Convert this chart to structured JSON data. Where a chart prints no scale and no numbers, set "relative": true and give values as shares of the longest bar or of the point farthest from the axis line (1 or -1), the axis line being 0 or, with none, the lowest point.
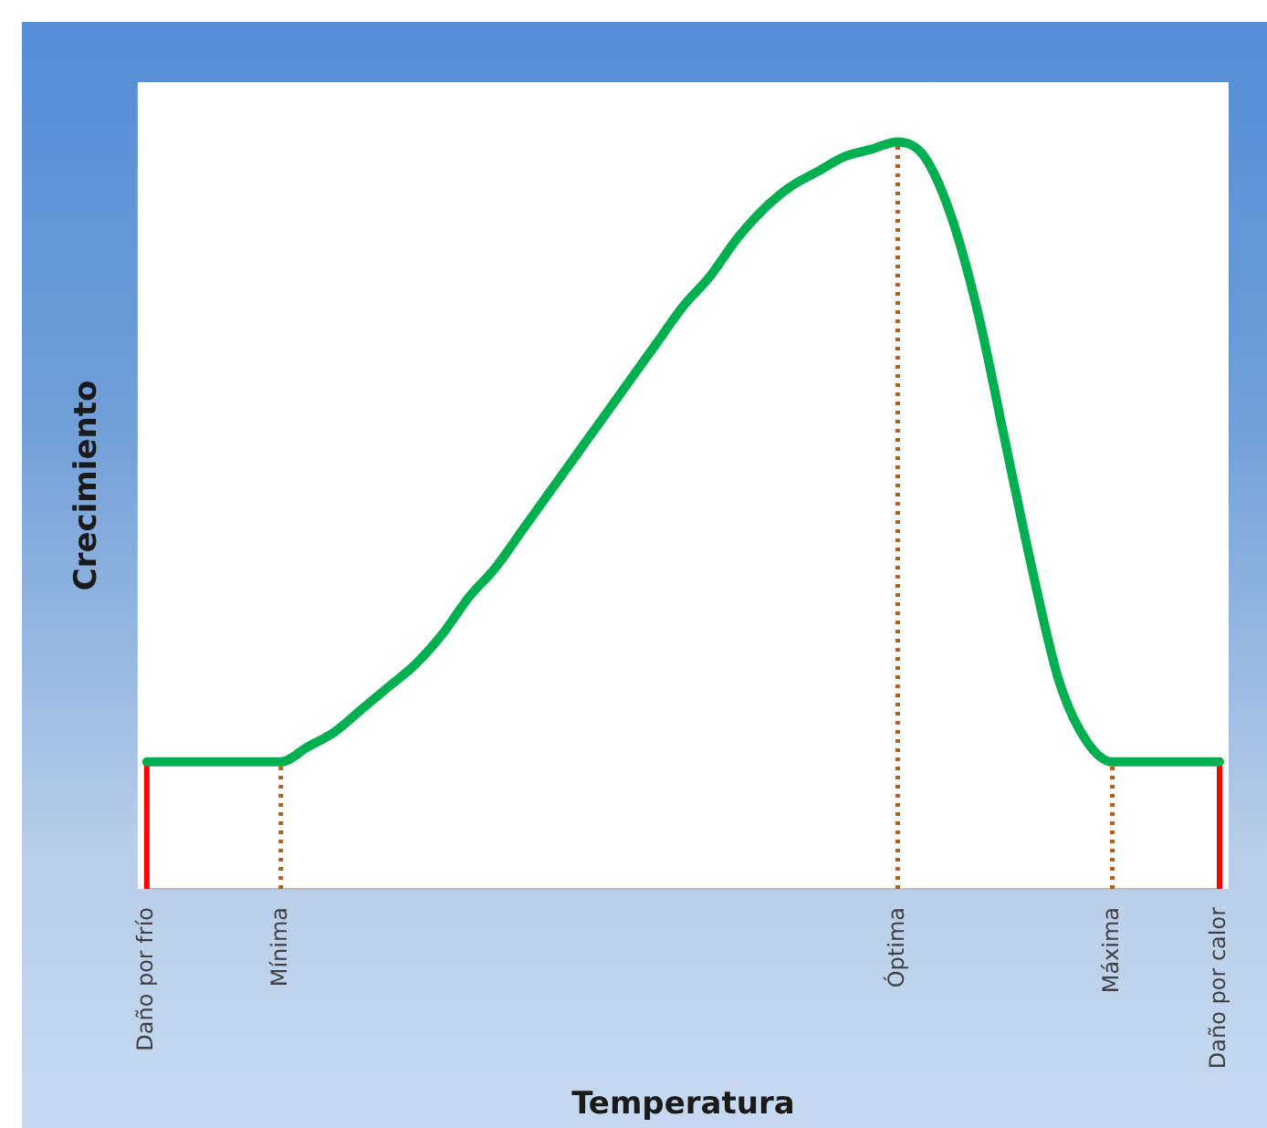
{
  "chart_data": {
    "type": "line",
    "relative": true,
    "xlabel": "Temperatura",
    "ylabel": "Crecimiento",
    "categories": [
      "Daño por frío",
      null,
      null,
      null,
      null,
      "Mínima",
      null,
      null,
      null,
      null,
      null,
      null,
      null,
      null,
      null,
      null,
      null,
      null,
      null,
      null,
      null,
      null,
      null,
      null,
      null,
      null,
      null,
      null,
      "Óptima",
      null,
      null,
      null,
      null,
      null,
      null,
      null,
      "Máxima",
      null,
      null,
      null,
      "Daño por calor"
    ],
    "series": [
      {
        "color": "#00b050",
        "values": [
          0.17,
          0.17,
          0.17,
          0.17,
          0.17,
          0.17,
          0.19,
          0.21,
          0.24,
          0.27,
          0.3,
          0.34,
          0.39,
          0.43,
          0.48,
          0.53,
          0.58,
          0.63,
          0.68,
          0.73,
          0.78,
          0.82,
          0.87,
          0.91,
          0.94,
          0.96,
          0.98,
          0.99,
          1.0,
          0.98,
          0.9,
          0.77,
          0.6,
          0.43,
          0.28,
          0.2,
          0.17,
          0.17,
          0.17,
          0.17,
          0.17
        ]
      }
    ],
    "ref_lines": [
      {
        "axis": "x",
        "value": "Daño por frío",
        "color": "#ff0000",
        "line_style": "solid"
      },
      {
        "axis": "x",
        "value": "Mínima",
        "color": "#b0601a",
        "line_style": "dotted"
      },
      {
        "axis": "x",
        "value": "Óptima",
        "color": "#b0601a",
        "line_style": "dotted"
      },
      {
        "axis": "x",
        "value": "Máxima",
        "color": "#b0601a",
        "line_style": "dotted"
      },
      {
        "axis": "x",
        "value": "Daño por calor",
        "color": "#ff0000",
        "line_style": "solid"
      }
    ],
    "grid": false,
    "legend": false,
    "marker": "none",
    "line_style": "solid"
  }
}
